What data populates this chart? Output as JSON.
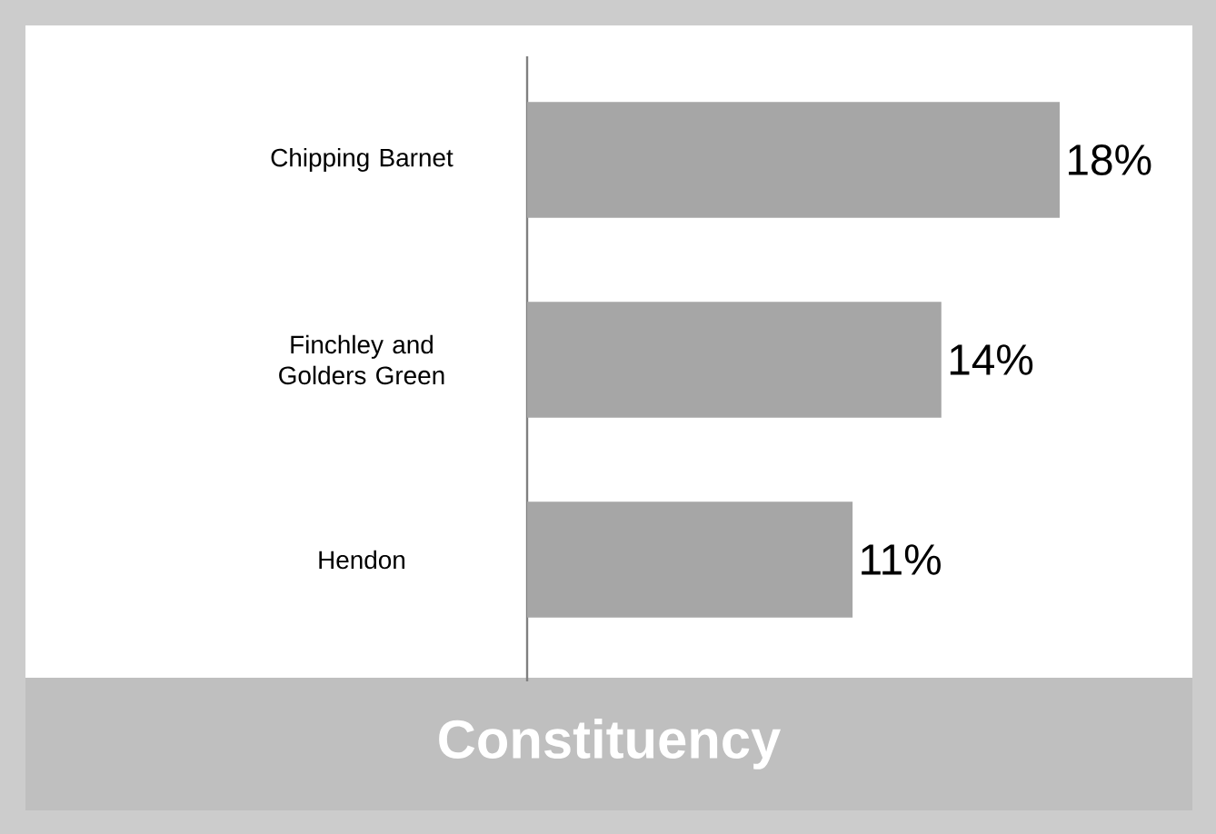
{
  "chart_data": {
    "type": "bar",
    "title": "Constituency",
    "orientation": "horizontal",
    "categories": [
      "Chipping Barnet",
      "Finchley and Golders Green",
      "Hendon"
    ],
    "values": [
      18,
      14,
      11
    ],
    "value_labels": [
      "18%",
      "14%",
      "11%"
    ],
    "color": "#a6a6a6"
  }
}
